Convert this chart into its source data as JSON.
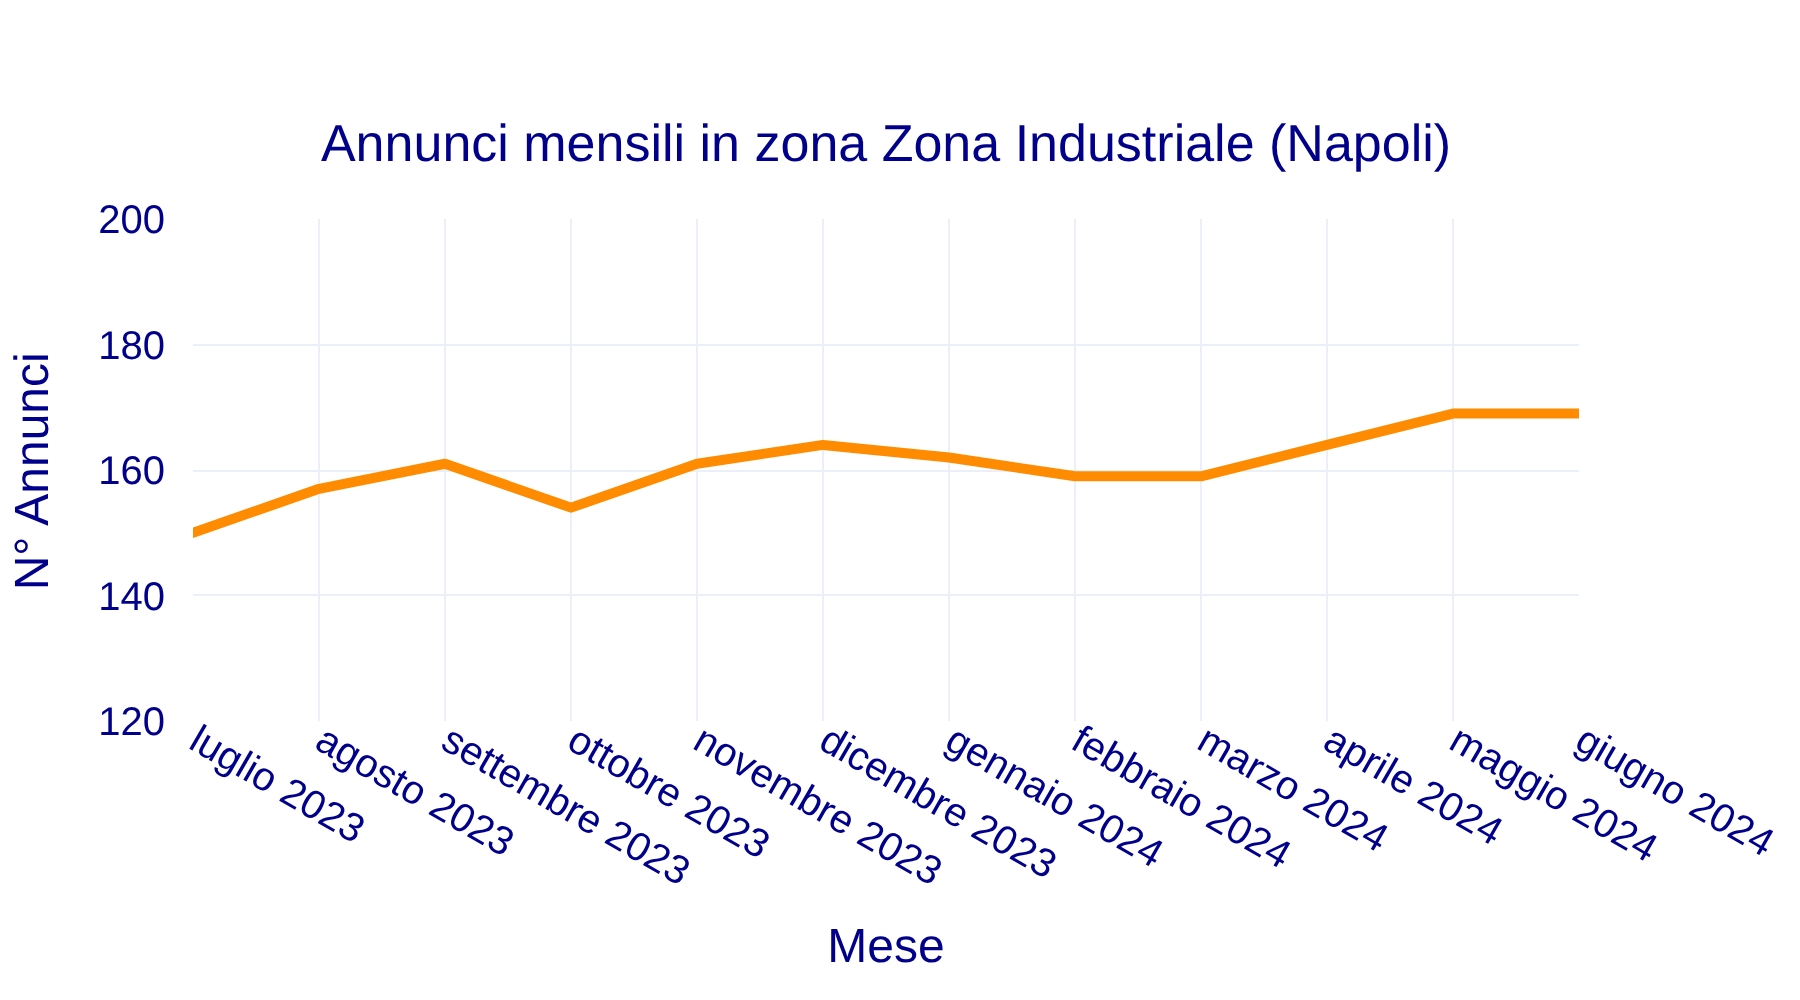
{
  "chart_data": {
    "type": "line",
    "title": "Annunci mensili in zona Zona Industriale (Napoli)",
    "xlabel": "Mese",
    "ylabel": "N° Annunci",
    "categories": [
      "luglio 2023",
      "agosto 2023",
      "settembre 2023",
      "ottobre 2023",
      "novembre 2023",
      "dicembre 2023",
      "gennaio 2024",
      "febbraio 2024",
      "marzo 2024",
      "aprile 2024",
      "maggio 2024",
      "giugno 2024"
    ],
    "values": [
      150,
      157,
      161,
      154,
      161,
      164,
      162,
      159,
      159,
      164,
      169,
      169
    ],
    "color": "#ff8c00",
    "ylim": [
      120,
      200
    ],
    "yticks": [
      120,
      140,
      160,
      180,
      200
    ],
    "grid": true,
    "line_style": "solid"
  }
}
